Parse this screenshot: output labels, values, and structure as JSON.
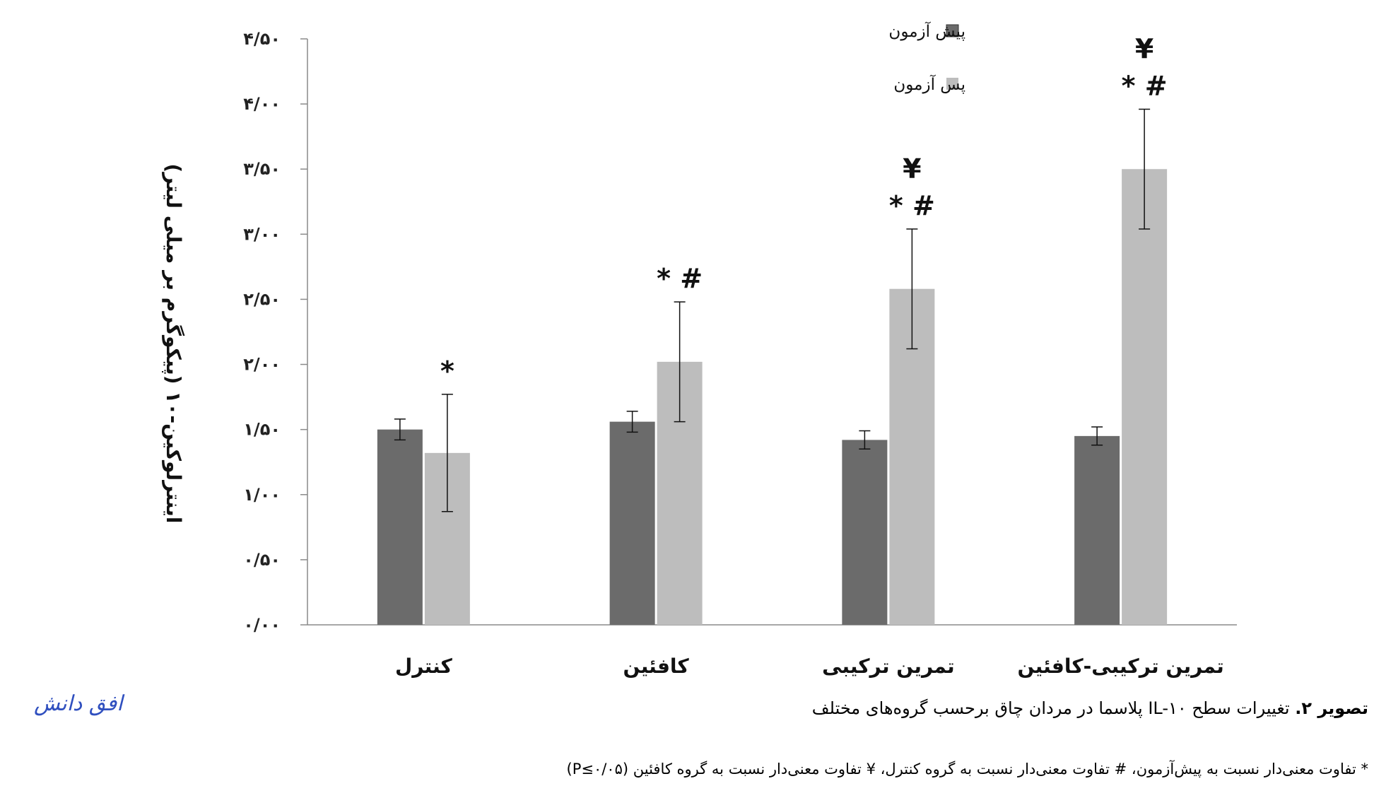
{
  "chart_data": {
    "type": "bar",
    "categories": [
      "کنترل",
      "کافئین",
      "تمرین  ترکیبی",
      "تمرین ترکیبی-کافئین"
    ],
    "series": [
      {
        "name": "پیش آزمون",
        "color": "#6b6b6b",
        "values": [
          1.5,
          1.56,
          1.42,
          1.45
        ],
        "errors": [
          0.08,
          0.08,
          0.07,
          0.07
        ]
      },
      {
        "name": "پس آزمون",
        "color": "#bdbdbd",
        "values": [
          1.32,
          2.02,
          2.58,
          3.5
        ],
        "errors": [
          0.45,
          0.46,
          0.46,
          0.46
        ]
      }
    ],
    "significance": [
      [
        "",
        "*"
      ],
      [
        "",
        "* #"
      ],
      [
        "",
        "* #|¥"
      ],
      [
        "",
        "* #|¥"
      ]
    ],
    "ylim": [
      0,
      4.5
    ],
    "yticks": [
      0,
      0.5,
      1.0,
      1.5,
      2.0,
      2.5,
      3.0,
      3.5,
      4.0,
      4.5
    ],
    "ytick_labels": [
      "۰/۰۰",
      "۰/۵۰",
      "۱/۰۰",
      "۱/۵۰",
      "۲/۰۰",
      "۲/۵۰",
      "۳/۰۰",
      "۳/۵۰",
      "۴/۰۰",
      "۴/۵۰"
    ],
    "ylabel": "اینترلوکین-۱۰ (پیکوگرم بر میلی لیتر)",
    "xlabel": "",
    "legend_position": "top-right",
    "grid": false
  },
  "caption": {
    "label": "تصویر ۲.",
    "text": " تغییرات سطح IL-۱۰ پلاسما در مردان چاق برحسب گروه‌های مختلف"
  },
  "footnote": "* تفاوت معنی‌دار نسبت به پیش‌آزمون، # تفاوت معنی‌دار نسبت به گروه کنترل، ¥ تفاوت معنی‌دار نسبت به گروه کافئین (P≤۰/۰۵)",
  "watermark": "افق دانش"
}
